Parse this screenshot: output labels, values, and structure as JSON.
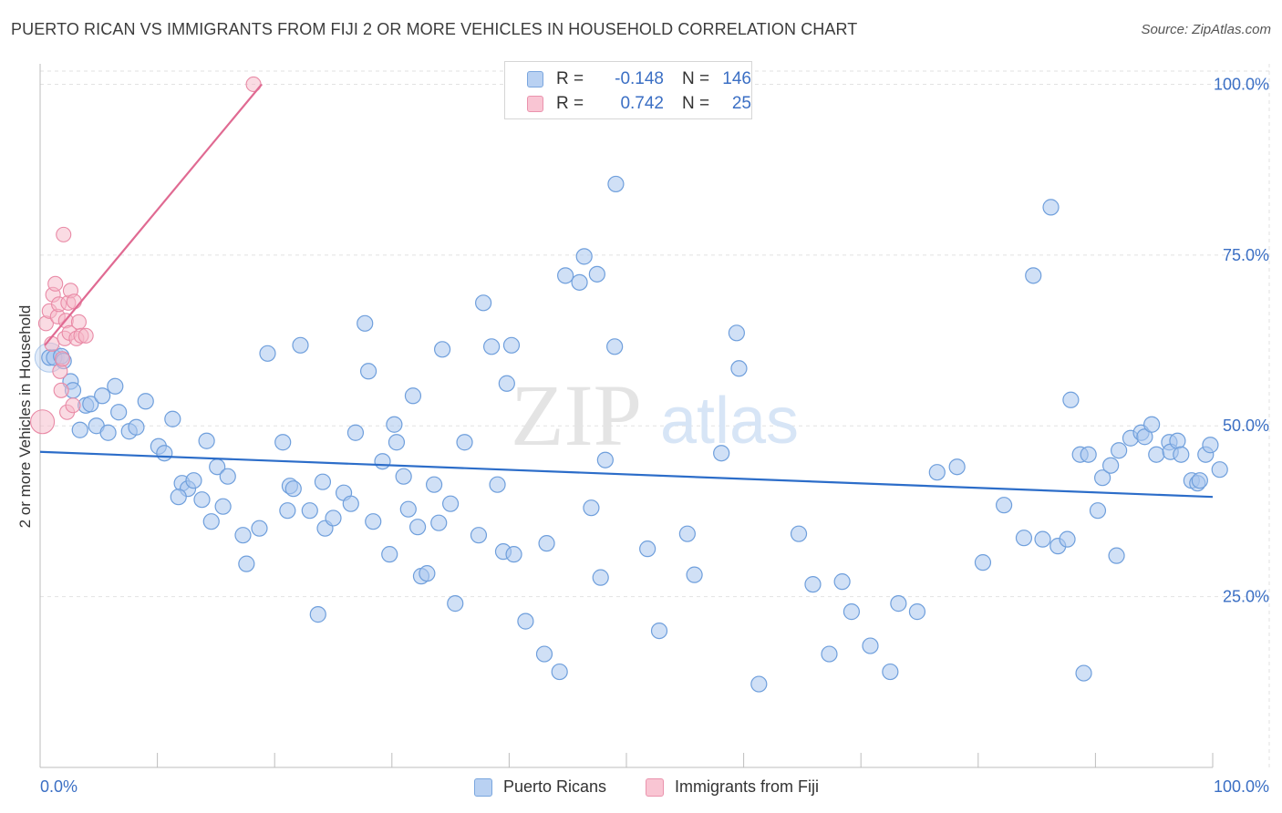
{
  "header": {
    "title": "PUERTO RICAN VS IMMIGRANTS FROM FIJI 2 OR MORE VEHICLES IN HOUSEHOLD CORRELATION CHART",
    "source": "Source: ZipAtlas.com"
  },
  "watermark": {
    "zip": "ZIP",
    "atlas": "atlas"
  },
  "legend_top": {
    "rows": [
      {
        "r_label": "R =",
        "r_value": "-0.148",
        "n_label": "N =",
        "n_value": "146"
      },
      {
        "r_label": "R =",
        "r_value": "0.742",
        "n_label": "N =",
        "n_value": "25"
      }
    ]
  },
  "legend_bottom": {
    "series1": "Puerto Ricans",
    "series2": "Immigrants from Fiji"
  },
  "colors": {
    "blue_fill": "#a9c6ee",
    "blue_stroke": "#6f9fdc",
    "blue_line": "#2c6dc9",
    "pink_fill": "#f6b8c8",
    "pink_stroke": "#e98aa6",
    "pink_line": "#e06a92",
    "grid": "#e2e2e2",
    "tick_text": "#3b6fc4"
  },
  "chart_data": {
    "type": "scatter",
    "title": "PUERTO RICAN VS IMMIGRANTS FROM FIJI 2 OR MORE VEHICLES IN HOUSEHOLD CORRELATION CHART",
    "xlabel": "",
    "ylabel": "2 or more Vehicles in Household",
    "xlim": [
      0,
      100
    ],
    "ylim": [
      0,
      103
    ],
    "x_tick_labels": [
      "0.0%",
      "100.0%"
    ],
    "y_ticks": [
      {
        "value": 25,
        "label": "25.0%"
      },
      {
        "value": 50,
        "label": "50.0%"
      },
      {
        "value": 75,
        "label": "75.0%"
      },
      {
        "value": 100,
        "label": "100.0%"
      }
    ],
    "series": [
      {
        "name": "Puerto Ricans",
        "r": -0.148,
        "n": 146,
        "trend": {
          "x0": 0,
          "y0": 46.2,
          "x1": 100,
          "y1": 39.6
        },
        "points": [
          [
            0.8,
            60
          ],
          [
            1.2,
            60
          ],
          [
            1.8,
            60.2
          ],
          [
            2,
            59.5
          ],
          [
            2.6,
            56.5
          ],
          [
            2.8,
            55.2
          ],
          [
            3.4,
            49.4
          ],
          [
            3.9,
            53
          ],
          [
            4.3,
            53.2
          ],
          [
            4.8,
            50
          ],
          [
            5.3,
            54.4
          ],
          [
            5.8,
            49
          ],
          [
            6.4,
            55.8
          ],
          [
            6.7,
            52
          ],
          [
            7.6,
            49.2
          ],
          [
            8.2,
            49.8
          ],
          [
            9,
            53.6
          ],
          [
            10.1,
            47
          ],
          [
            10.6,
            46
          ],
          [
            11.3,
            51
          ],
          [
            12.1,
            41.6
          ],
          [
            12.6,
            40.8
          ],
          [
            11.8,
            39.6
          ],
          [
            13.1,
            42
          ],
          [
            13.8,
            39.2
          ],
          [
            14.2,
            47.8
          ],
          [
            15.1,
            44
          ],
          [
            16,
            42.6
          ],
          [
            15.6,
            38.2
          ],
          [
            17.3,
            34
          ],
          [
            18.7,
            35
          ],
          [
            17.6,
            29.8
          ],
          [
            14.6,
            36
          ],
          [
            19.4,
            60.6
          ],
          [
            20.7,
            47.6
          ],
          [
            21.3,
            41.2
          ],
          [
            21.6,
            40.8
          ],
          [
            21.1,
            37.6
          ],
          [
            22.2,
            61.8
          ],
          [
            23,
            37.6
          ],
          [
            23.7,
            22.4
          ],
          [
            24.1,
            41.8
          ],
          [
            24.3,
            35
          ],
          [
            25,
            36.5
          ],
          [
            25.9,
            40.2
          ],
          [
            26.5,
            38.6
          ],
          [
            26.9,
            49
          ],
          [
            27.7,
            65
          ],
          [
            28,
            58
          ],
          [
            28.4,
            36
          ],
          [
            29.2,
            44.8
          ],
          [
            29.8,
            31.2
          ],
          [
            30.2,
            50.2
          ],
          [
            30.4,
            47.6
          ],
          [
            31,
            42.6
          ],
          [
            31.4,
            37.8
          ],
          [
            31.8,
            54.4
          ],
          [
            32.2,
            35.2
          ],
          [
            32.5,
            28
          ],
          [
            33,
            28.4
          ],
          [
            33.6,
            41.4
          ],
          [
            34,
            35.8
          ],
          [
            34.3,
            61.2
          ],
          [
            35,
            38.6
          ],
          [
            35.4,
            24
          ],
          [
            36.2,
            47.6
          ],
          [
            37.4,
            34
          ],
          [
            37.8,
            68
          ],
          [
            38.5,
            61.6
          ],
          [
            39,
            41.4
          ],
          [
            39.5,
            31.6
          ],
          [
            39.8,
            56.2
          ],
          [
            40.2,
            61.8
          ],
          [
            40.4,
            31.2
          ],
          [
            41.4,
            21.4
          ],
          [
            43,
            16.6
          ],
          [
            43.2,
            32.8
          ],
          [
            44.3,
            14
          ],
          [
            44.8,
            72
          ],
          [
            46,
            71
          ],
          [
            46.4,
            74.8
          ],
          [
            47,
            38
          ],
          [
            47.5,
            72.2
          ],
          [
            47.8,
            27.8
          ],
          [
            48.2,
            45
          ],
          [
            49,
            61.6
          ],
          [
            49.1,
            85.4
          ],
          [
            51.8,
            32
          ],
          [
            52.8,
            20
          ],
          [
            55.2,
            34.2
          ],
          [
            55.8,
            28.2
          ],
          [
            58.1,
            46
          ],
          [
            59.4,
            63.6
          ],
          [
            59.6,
            58.4
          ],
          [
            61.3,
            12.2
          ],
          [
            64.7,
            34.2
          ],
          [
            65.9,
            26.8
          ],
          [
            67.3,
            16.6
          ],
          [
            68.4,
            27.2
          ],
          [
            69.2,
            22.8
          ],
          [
            70.8,
            17.8
          ],
          [
            72.5,
            14
          ],
          [
            73.2,
            24
          ],
          [
            74.8,
            22.8
          ],
          [
            76.5,
            43.2
          ],
          [
            78.2,
            44
          ],
          [
            80.4,
            30
          ],
          [
            82.2,
            38.4
          ],
          [
            83.9,
            33.6
          ],
          [
            84.7,
            72
          ],
          [
            85.5,
            33.4
          ],
          [
            86.2,
            82
          ],
          [
            86.8,
            32.4
          ],
          [
            87.6,
            33.4
          ],
          [
            87.9,
            53.8
          ],
          [
            88.7,
            45.8
          ],
          [
            89,
            13.8
          ],
          [
            89.4,
            45.8
          ],
          [
            90.2,
            37.6
          ],
          [
            90.6,
            42.4
          ],
          [
            91.3,
            44.2
          ],
          [
            91.8,
            31
          ],
          [
            92,
            46.4
          ],
          [
            93,
            48.2
          ],
          [
            93.9,
            49
          ],
          [
            94.2,
            48.4
          ],
          [
            94.8,
            50.2
          ],
          [
            95.2,
            45.8
          ],
          [
            96.3,
            47.6
          ],
          [
            96.4,
            46.2
          ],
          [
            97,
            47.8
          ],
          [
            97.3,
            45.8
          ],
          [
            98.2,
            42
          ],
          [
            98.7,
            41.6
          ],
          [
            98.9,
            42
          ],
          [
            99.4,
            45.8
          ],
          [
            99.8,
            47.2
          ],
          [
            100.6,
            43.6
          ]
        ]
      },
      {
        "name": "Immigrants from Fiji",
        "r": 0.742,
        "n": 25,
        "trend": {
          "x0": 0.4,
          "y0": 61.8,
          "x1": 18.9,
          "y1": 100
        },
        "points": [
          [
            0.2,
            50.6
          ],
          [
            0.5,
            65
          ],
          [
            0.8,
            66.8
          ],
          [
            1,
            62
          ],
          [
            1.1,
            69.2
          ],
          [
            1.3,
            70.8
          ],
          [
            1.5,
            66
          ],
          [
            1.6,
            67.8
          ],
          [
            1.7,
            58
          ],
          [
            1.8,
            55.2
          ],
          [
            1.9,
            59.8
          ],
          [
            2,
            78
          ],
          [
            2.1,
            62.8
          ],
          [
            2.2,
            65.4
          ],
          [
            2.3,
            52
          ],
          [
            2.4,
            68
          ],
          [
            2.5,
            63.6
          ],
          [
            2.6,
            69.8
          ],
          [
            2.8,
            53
          ],
          [
            2.9,
            68.2
          ],
          [
            3.1,
            62.8
          ],
          [
            3.3,
            65.2
          ],
          [
            3.5,
            63.2
          ],
          [
            3.9,
            63.2
          ],
          [
            18.2,
            100
          ]
        ]
      }
    ]
  }
}
